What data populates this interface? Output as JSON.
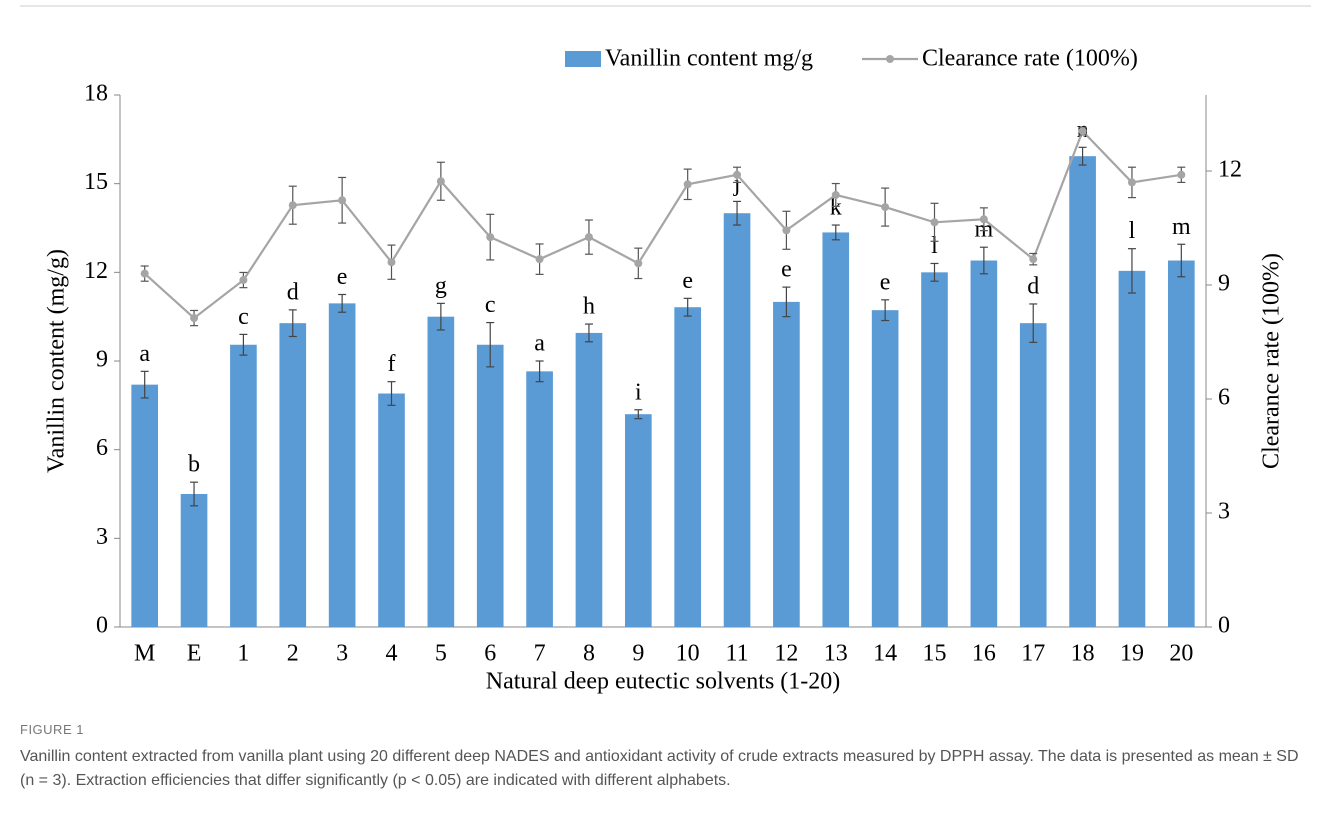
{
  "chart_data": {
    "type": "bar",
    "x_label": "Natural deep eutectic solvents (1-20)",
    "y_label": "Vanillin content (mg/g)",
    "y2_label": "Clearance rate (100%)",
    "categories": [
      "M",
      "E",
      "1",
      "2",
      "3",
      "4",
      "5",
      "6",
      "7",
      "8",
      "9",
      "10",
      "11",
      "12",
      "13",
      "14",
      "15",
      "16",
      "17",
      "18",
      "19",
      "20"
    ],
    "series": [
      {
        "name": "Vanillin content mg/g",
        "type": "bar",
        "color": "#5b9bd5",
        "values": [
          8.2,
          4.5,
          9.55,
          10.28,
          10.95,
          7.9,
          10.5,
          9.55,
          8.65,
          9.95,
          7.2,
          10.82,
          14.0,
          11.0,
          13.35,
          10.72,
          12.0,
          12.4,
          10.28,
          15.93,
          12.05,
          12.4
        ],
        "errors": [
          0.45,
          0.4,
          0.35,
          0.45,
          0.3,
          0.4,
          0.45,
          0.75,
          0.35,
          0.3,
          0.15,
          0.3,
          0.4,
          0.5,
          0.25,
          0.35,
          0.3,
          0.45,
          0.65,
          0.3,
          0.75,
          0.55
        ],
        "letters": [
          "a",
          "b",
          "c",
          "d",
          "e",
          "f",
          "g",
          "c",
          "a",
          "h",
          "i",
          "e",
          "j",
          "e",
          "k",
          "e",
          "l",
          "m",
          "d",
          "n",
          "l",
          "m"
        ]
      },
      {
        "name": "Clearance rate (100%)",
        "type": "line",
        "axis": "y2",
        "color": "#a5a5a5",
        "values": [
          9.3,
          8.13,
          9.13,
          11.1,
          11.23,
          9.6,
          11.73,
          10.26,
          9.68,
          10.26,
          9.57,
          11.65,
          11.9,
          10.44,
          11.37,
          11.05,
          10.65,
          10.73,
          9.68,
          13.05,
          11.7,
          11.9
        ],
        "errors": [
          0.2,
          0.2,
          0.2,
          0.5,
          0.6,
          0.45,
          0.5,
          0.6,
          0.4,
          0.45,
          0.4,
          0.4,
          0.2,
          0.5,
          0.3,
          0.5,
          0.5,
          0.3,
          0.15,
          0.1,
          0.4,
          0.2
        ]
      }
    ],
    "ylim": [
      0,
      18
    ],
    "yticks": [
      0,
      3,
      6,
      9,
      12,
      15,
      18
    ],
    "y2lim": [
      0,
      14
    ],
    "y2ticks": [
      0,
      3,
      6,
      9,
      12
    ],
    "legend": "top",
    "grid": false
  },
  "caption": {
    "label": "FIGURE 1",
    "text": "Vanillin content extracted from vanilla plant using 20 different deep NADES and antioxidant activity of crude extracts measured by DPPH assay. The data is presented as mean ± SD (n = 3). Extraction efficiencies that differ significantly (p < 0.05) are indicated with different alphabets."
  }
}
